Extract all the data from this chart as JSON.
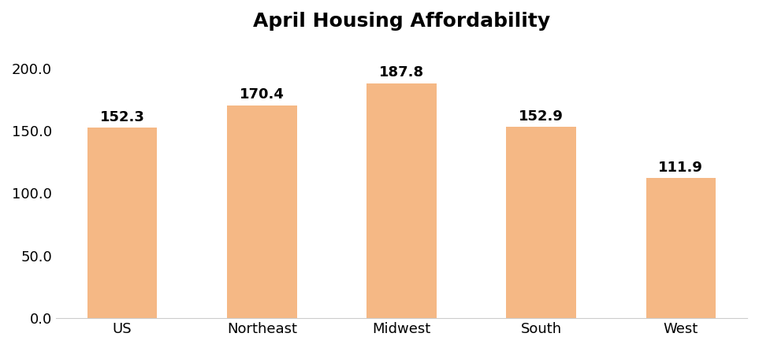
{
  "title": "April Housing Affordability",
  "categories": [
    "US",
    "Northeast",
    "Midwest",
    "South",
    "West"
  ],
  "values": [
    152.3,
    170.4,
    187.8,
    152.9,
    111.9
  ],
  "bar_color": "#F5B885",
  "bar_edge_color": "none",
  "title_fontsize": 18,
  "title_fontweight": "bold",
  "tick_label_fontsize": 13,
  "value_label_fontsize": 13,
  "value_label_fontweight": "bold",
  "yticks": [
    0.0,
    50.0,
    100.0,
    150.0,
    200.0
  ],
  "ylim": [
    0,
    220
  ],
  "background_color": "#ffffff",
  "bar_width": 0.5,
  "grid": false
}
